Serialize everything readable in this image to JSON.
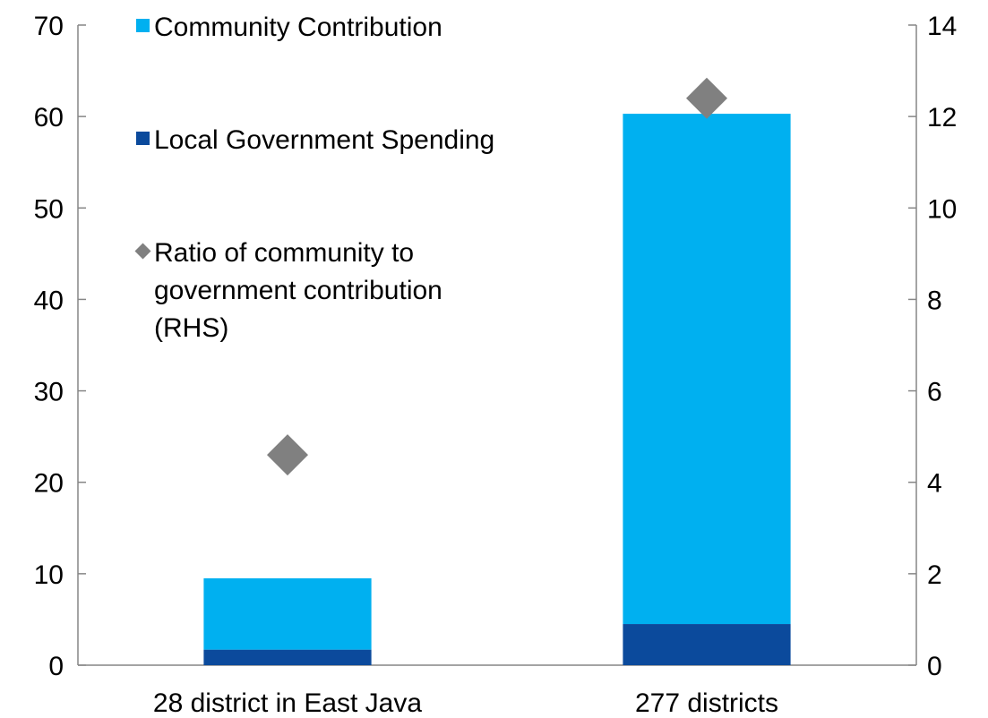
{
  "chart_data": {
    "type": "bar",
    "stacked": true,
    "categories": [
      "28 district in East Java",
      "277 districts"
    ],
    "series": [
      {
        "name": "Local Government Spending",
        "color": "#0b4a9c",
        "axis": "left",
        "values": [
          1.7,
          4.5
        ]
      },
      {
        "name": "Community Contribution",
        "color": "#00b0f0",
        "axis": "left",
        "values": [
          7.8,
          55.8
        ]
      },
      {
        "name": "Ratio of community to government contribution (RHS)",
        "color": "#808080",
        "axis": "right",
        "marker": "diamond",
        "values": [
          4.6,
          12.4
        ]
      }
    ],
    "y_left": {
      "min": 0,
      "max": 70,
      "ticks": [
        0,
        10,
        20,
        30,
        40,
        50,
        60,
        70
      ]
    },
    "y_right": {
      "min": 0,
      "max": 14,
      "ticks": [
        0,
        2,
        4,
        6,
        8,
        10,
        12,
        14
      ]
    },
    "legend": {
      "placement": "top-left",
      "items": [
        {
          "label_lines": [
            "Community Contribution"
          ],
          "color": "#00b0f0",
          "marker": "square"
        },
        {
          "label_lines": [
            "Local Government Spending"
          ],
          "color": "#0b4a9c",
          "marker": "square"
        },
        {
          "label_lines": [
            "Ratio of community to",
            "government contribution",
            "(RHS)"
          ],
          "color": "#808080",
          "marker": "diamond"
        }
      ]
    },
    "grid": false
  }
}
